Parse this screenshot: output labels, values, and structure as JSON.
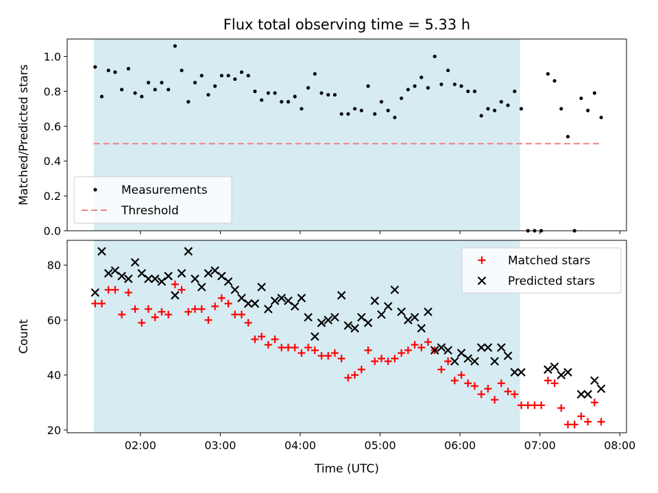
{
  "chart_data": [
    {
      "type": "scatter",
      "title": "Flux total observing time = 5.33 h",
      "xlabel": "",
      "ylabel": "Matched/Predicted stars",
      "xlim": [
        "01:05",
        "08:05"
      ],
      "ylim": [
        0.0,
        1.1
      ],
      "yticks": [
        "0.0",
        "0.2",
        "0.4",
        "0.6",
        "0.8",
        "1.0"
      ],
      "xticks": [
        "02:00",
        "03:00",
        "04:00",
        "05:00",
        "06:00",
        "07:00",
        "08:00"
      ],
      "shaded_span": [
        "01:25",
        "06:45"
      ],
      "legend_position": "lower-left",
      "series": [
        {
          "name": "Measurements",
          "color": "#000000",
          "marker": "dot",
          "points": [
            [
              "01:26",
              0.94
            ],
            [
              "01:31",
              0.77
            ],
            [
              "01:36",
              0.92
            ],
            [
              "01:41",
              0.91
            ],
            [
              "01:46",
              0.81
            ],
            [
              "01:51",
              0.93
            ],
            [
              "01:56",
              0.79
            ],
            [
              "02:01",
              0.77
            ],
            [
              "02:06",
              0.85
            ],
            [
              "02:11",
              0.81
            ],
            [
              "02:16",
              0.85
            ],
            [
              "02:21",
              0.81
            ],
            [
              "02:26",
              1.06
            ],
            [
              "02:31",
              0.92
            ],
            [
              "02:36",
              0.74
            ],
            [
              "02:41",
              0.85
            ],
            [
              "02:46",
              0.89
            ],
            [
              "02:51",
              0.78
            ],
            [
              "02:56",
              0.83
            ],
            [
              "03:01",
              0.89
            ],
            [
              "03:06",
              0.89
            ],
            [
              "03:11",
              0.87
            ],
            [
              "03:16",
              0.91
            ],
            [
              "03:21",
              0.89
            ],
            [
              "03:26",
              0.8
            ],
            [
              "03:31",
              0.75
            ],
            [
              "03:36",
              0.79
            ],
            [
              "03:41",
              0.79
            ],
            [
              "03:46",
              0.74
            ],
            [
              "03:51",
              0.74
            ],
            [
              "03:56",
              0.77
            ],
            [
              "04:01",
              0.7
            ],
            [
              "04:06",
              0.82
            ],
            [
              "04:11",
              0.9
            ],
            [
              "04:16",
              0.79
            ],
            [
              "04:21",
              0.78
            ],
            [
              "04:26",
              0.78
            ],
            [
              "04:31",
              0.67
            ],
            [
              "04:36",
              0.67
            ],
            [
              "04:41",
              0.7
            ],
            [
              "04:46",
              0.69
            ],
            [
              "04:51",
              0.83
            ],
            [
              "04:56",
              0.67
            ],
            [
              "05:01",
              0.74
            ],
            [
              "05:06",
              0.69
            ],
            [
              "05:11",
              0.65
            ],
            [
              "05:16",
              0.76
            ],
            [
              "05:21",
              0.81
            ],
            [
              "05:26",
              0.83
            ],
            [
              "05:31",
              0.88
            ],
            [
              "05:36",
              0.82
            ],
            [
              "05:41",
              1.0
            ],
            [
              "05:46",
              0.84
            ],
            [
              "05:51",
              0.92
            ],
            [
              "05:56",
              0.84
            ],
            [
              "06:01",
              0.83
            ],
            [
              "06:06",
              0.8
            ],
            [
              "06:11",
              0.8
            ],
            [
              "06:16",
              0.66
            ],
            [
              "06:21",
              0.7
            ],
            [
              "06:26",
              0.69
            ],
            [
              "06:31",
              0.74
            ],
            [
              "06:36",
              0.72
            ],
            [
              "06:41",
              0.8
            ],
            [
              "06:46",
              0.7
            ],
            [
              "06:51",
              0.0
            ],
            [
              "06:56",
              0.0
            ],
            [
              "07:01",
              0.0
            ],
            [
              "07:06",
              0.9
            ],
            [
              "07:11",
              0.86
            ],
            [
              "07:16",
              0.7
            ],
            [
              "07:21",
              0.54
            ],
            [
              "07:26",
              0.0
            ],
            [
              "07:31",
              0.76
            ],
            [
              "07:36",
              0.69
            ],
            [
              "07:41",
              0.79
            ],
            [
              "07:46",
              0.65
            ]
          ]
        },
        {
          "name": "Threshold",
          "color": "#f08080",
          "line_style": "dashed",
          "points": [
            [
              "01:25",
              0.5
            ],
            [
              "07:46",
              0.5
            ]
          ]
        }
      ]
    },
    {
      "type": "scatter",
      "title": "",
      "xlabel": "Time (UTC)",
      "ylabel": "Count",
      "xlim": [
        "01:05",
        "08:05"
      ],
      "ylim": [
        19,
        89
      ],
      "yticks": [
        "20",
        "40",
        "60",
        "80"
      ],
      "xticks": [
        "02:00",
        "03:00",
        "04:00",
        "05:00",
        "06:00",
        "07:00",
        "08:00"
      ],
      "shaded_span": [
        "01:25",
        "06:45"
      ],
      "legend_position": "upper-right",
      "series": [
        {
          "name": "Matched stars",
          "color": "#ff0000",
          "marker": "plus",
          "points": [
            [
              "01:26",
              66
            ],
            [
              "01:31",
              66
            ],
            [
              "01:36",
              71
            ],
            [
              "01:41",
              71
            ],
            [
              "01:46",
              62
            ],
            [
              "01:51",
              70
            ],
            [
              "01:56",
              64
            ],
            [
              "02:01",
              59
            ],
            [
              "02:06",
              64
            ],
            [
              "02:11",
              61
            ],
            [
              "02:16",
              63
            ],
            [
              "02:21",
              62
            ],
            [
              "02:26",
              73
            ],
            [
              "02:31",
              71
            ],
            [
              "02:36",
              63
            ],
            [
              "02:41",
              64
            ],
            [
              "02:46",
              64
            ],
            [
              "02:51",
              60
            ],
            [
              "02:56",
              65
            ],
            [
              "03:01",
              68
            ],
            [
              "03:06",
              66
            ],
            [
              "03:11",
              62
            ],
            [
              "03:16",
              62
            ],
            [
              "03:21",
              59
            ],
            [
              "03:26",
              53
            ],
            [
              "03:31",
              54
            ],
            [
              "03:36",
              51
            ],
            [
              "03:41",
              53
            ],
            [
              "03:46",
              50
            ],
            [
              "03:51",
              50
            ],
            [
              "03:56",
              50
            ],
            [
              "04:01",
              48
            ],
            [
              "04:06",
              50
            ],
            [
              "04:11",
              49
            ],
            [
              "04:16",
              47
            ],
            [
              "04:21",
              47
            ],
            [
              "04:26",
              48
            ],
            [
              "04:31",
              46
            ],
            [
              "04:36",
              39
            ],
            [
              "04:41",
              40
            ],
            [
              "04:46",
              42
            ],
            [
              "04:51",
              49
            ],
            [
              "04:56",
              45
            ],
            [
              "05:01",
              46
            ],
            [
              "05:06",
              45
            ],
            [
              "05:11",
              46
            ],
            [
              "05:16",
              48
            ],
            [
              "05:21",
              49
            ],
            [
              "05:26",
              51
            ],
            [
              "05:31",
              50
            ],
            [
              "05:36",
              52
            ],
            [
              "05:41",
              49
            ],
            [
              "05:46",
              42
            ],
            [
              "05:51",
              45
            ],
            [
              "05:56",
              38
            ],
            [
              "06:01",
              40
            ],
            [
              "06:06",
              37
            ],
            [
              "06:11",
              36
            ],
            [
              "06:16",
              33
            ],
            [
              "06:21",
              35
            ],
            [
              "06:26",
              31
            ],
            [
              "06:31",
              37
            ],
            [
              "06:36",
              34
            ],
            [
              "06:41",
              33
            ],
            [
              "06:46",
              29
            ],
            [
              "06:51",
              29
            ],
            [
              "06:56",
              29
            ],
            [
              "07:01",
              29
            ],
            [
              "07:06",
              38
            ],
            [
              "07:11",
              37
            ],
            [
              "07:16",
              28
            ],
            [
              "07:21",
              22
            ],
            [
              "07:26",
              22
            ],
            [
              "07:31",
              25
            ],
            [
              "07:36",
              23
            ],
            [
              "07:41",
              30
            ],
            [
              "07:46",
              23
            ]
          ]
        },
        {
          "name": "Predicted stars",
          "color": "#000000",
          "marker": "x",
          "points": [
            [
              "01:26",
              70
            ],
            [
              "01:31",
              85
            ],
            [
              "01:36",
              77
            ],
            [
              "01:41",
              78
            ],
            [
              "01:46",
              76
            ],
            [
              "01:51",
              75
            ],
            [
              "01:56",
              81
            ],
            [
              "02:01",
              77
            ],
            [
              "02:06",
              75
            ],
            [
              "02:11",
              75
            ],
            [
              "02:16",
              74
            ],
            [
              "02:21",
              76
            ],
            [
              "02:26",
              69
            ],
            [
              "02:31",
              77
            ],
            [
              "02:36",
              85
            ],
            [
              "02:41",
              75
            ],
            [
              "02:46",
              72
            ],
            [
              "02:51",
              77
            ],
            [
              "02:56",
              78
            ],
            [
              "03:01",
              76
            ],
            [
              "03:06",
              74
            ],
            [
              "03:11",
              71
            ],
            [
              "03:16",
              68
            ],
            [
              "03:21",
              66
            ],
            [
              "03:26",
              66
            ],
            [
              "03:31",
              72
            ],
            [
              "03:36",
              64
            ],
            [
              "03:41",
              67
            ],
            [
              "03:46",
              68
            ],
            [
              "03:51",
              67
            ],
            [
              "03:56",
              65
            ],
            [
              "04:01",
              68
            ],
            [
              "04:06",
              61
            ],
            [
              "04:11",
              54
            ],
            [
              "04:16",
              59
            ],
            [
              "04:21",
              60
            ],
            [
              "04:26",
              61
            ],
            [
              "04:31",
              69
            ],
            [
              "04:36",
              58
            ],
            [
              "04:41",
              57
            ],
            [
              "04:46",
              61
            ],
            [
              "04:51",
              59
            ],
            [
              "04:56",
              67
            ],
            [
              "05:01",
              62
            ],
            [
              "05:06",
              65
            ],
            [
              "05:11",
              71
            ],
            [
              "05:16",
              63
            ],
            [
              "05:21",
              60
            ],
            [
              "05:26",
              61
            ],
            [
              "05:31",
              57
            ],
            [
              "05:36",
              63
            ],
            [
              "05:41",
              49
            ],
            [
              "05:46",
              50
            ],
            [
              "05:51",
              49
            ],
            [
              "05:56",
              45
            ],
            [
              "06:01",
              48
            ],
            [
              "06:06",
              46
            ],
            [
              "06:11",
              45
            ],
            [
              "06:16",
              50
            ],
            [
              "06:21",
              50
            ],
            [
              "06:26",
              45
            ],
            [
              "06:31",
              50
            ],
            [
              "06:36",
              47
            ],
            [
              "06:41",
              41
            ],
            [
              "06:46",
              41
            ],
            [
              "07:06",
              42
            ],
            [
              "07:11",
              43
            ],
            [
              "07:16",
              40
            ],
            [
              "07:21",
              41
            ],
            [
              "07:31",
              33
            ],
            [
              "07:36",
              33
            ],
            [
              "07:41",
              38
            ],
            [
              "07:46",
              35
            ]
          ]
        }
      ]
    }
  ],
  "colors": {
    "shade": "#add8e6",
    "threshold": "#f08080",
    "matched": "#ff0000",
    "predicted": "#000000"
  }
}
